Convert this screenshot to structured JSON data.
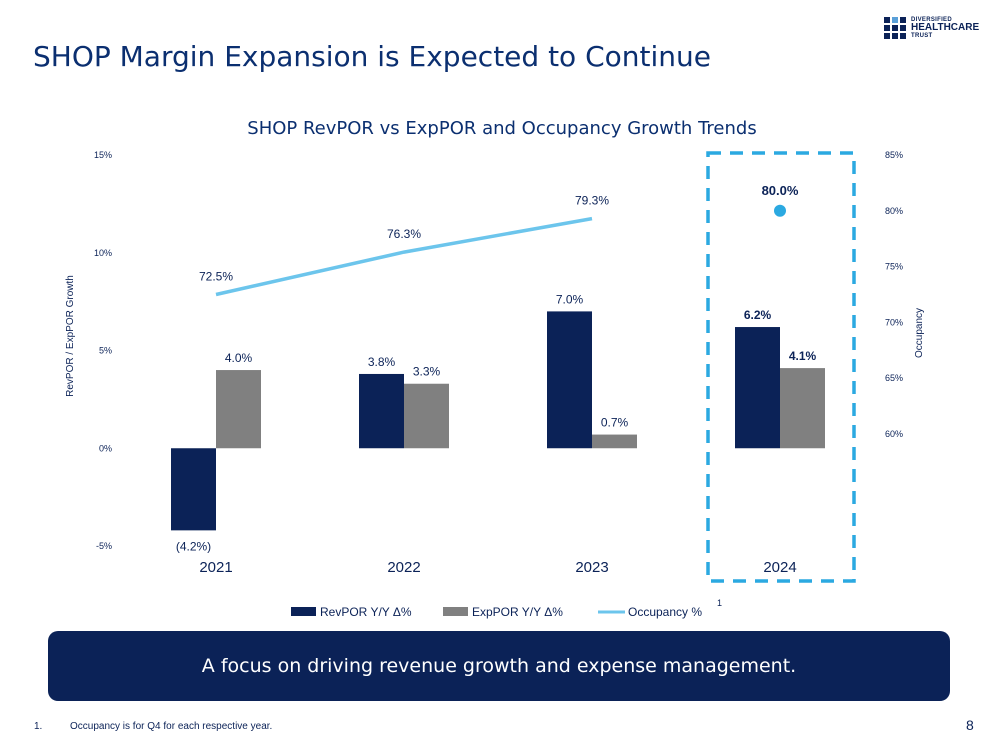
{
  "page": {
    "title": "SHOP Margin Expansion is Expected to Continue",
    "logo": {
      "line1": "DIVERSIFIED",
      "line2": "HEALTHCARE",
      "line3": "TRUST"
    },
    "callout": "A focus on driving revenue growth and expense management.",
    "footnote_number": "1.",
    "footnote_text": "Occupancy is for Q4 for each respective year.",
    "page_number": "8",
    "colors": {
      "navy": "#0b2257",
      "gray": "#808080",
      "light_blue": "#6cc5ec",
      "dash_blue": "#2ba9e1"
    }
  },
  "chart_data": {
    "type": "bar",
    "title": "SHOP RevPOR vs ExpPOR and Occupancy Growth Trends",
    "categories": [
      "2021",
      "2022",
      "2023",
      "2024"
    ],
    "ylabel": "RevPOR / ExpPOR Growth",
    "y2label": "Occupancy",
    "ylim": [
      -5,
      15
    ],
    "y_ticks": [
      "-5%",
      "0%",
      "5%",
      "10%",
      "15%"
    ],
    "y2lim": [
      60,
      85
    ],
    "y2_ticks": [
      "60%",
      "65%",
      "70%",
      "75%",
      "80%",
      "85%"
    ],
    "series": [
      {
        "name": "RevPOR Y/Y Δ%",
        "type": "bar",
        "values": [
          -4.2,
          3.8,
          7.0,
          6.2
        ],
        "labels": [
          "(4.2%)",
          "3.8%",
          "7.0%",
          "6.2%"
        ],
        "color": "#0b2257"
      },
      {
        "name": "ExpPOR Y/Y Δ%",
        "type": "bar",
        "values": [
          4.0,
          3.3,
          0.7,
          4.1
        ],
        "labels": [
          "4.0%",
          "3.3%",
          "0.7%",
          "4.1%"
        ],
        "color": "#808080"
      },
      {
        "name": "Occupancy %",
        "type": "line",
        "axis": "y2",
        "values": [
          72.5,
          76.3,
          79.3,
          80.0
        ],
        "labels": [
          "72.5%",
          "76.3%",
          "79.3%",
          "80.0%"
        ],
        "color": "#6cc5ec",
        "note": "2024 shown as point estimate"
      }
    ],
    "legend_position": "bottom",
    "legend_superscript": "1",
    "highlight_category": "2024"
  }
}
